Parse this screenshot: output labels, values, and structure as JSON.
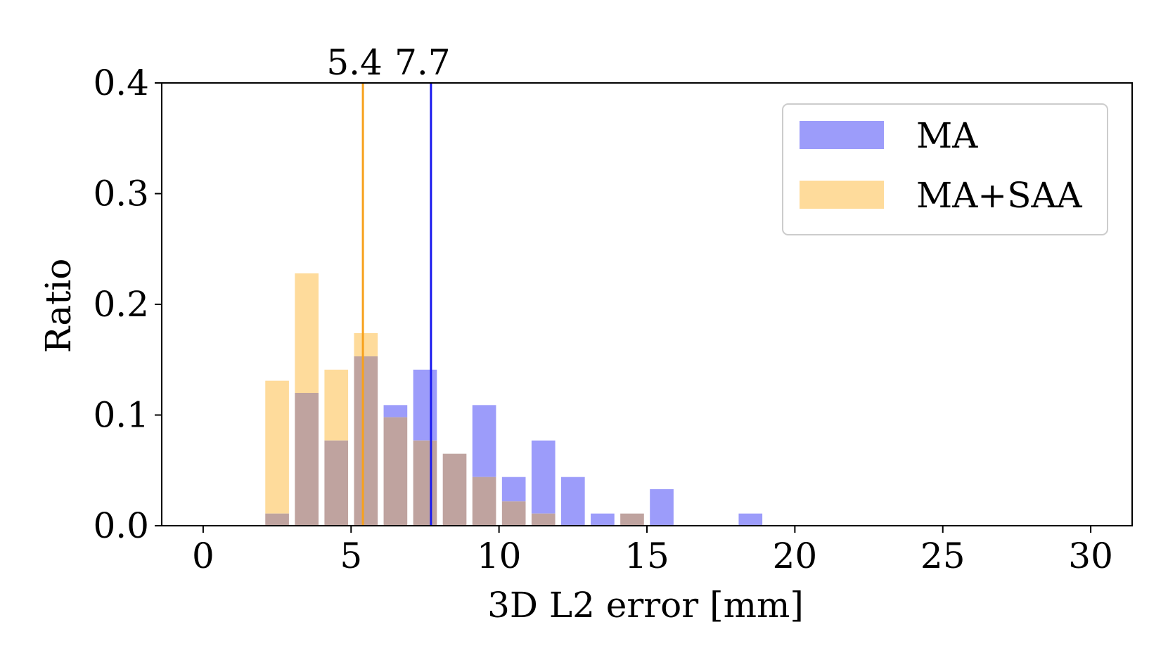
{
  "chart_data": {
    "type": "bar",
    "xlabel": "3D L2 error [mm]",
    "ylabel": "Ratio",
    "xlim": [
      -1.4,
      31.4
    ],
    "ylim": [
      0,
      0.4
    ],
    "xticks": [
      0,
      5,
      10,
      15,
      20,
      25,
      30
    ],
    "yticks": [
      "0.0",
      "0.1",
      "0.2",
      "0.3",
      "0.4"
    ],
    "bin_width": 1,
    "bin_centers": [
      2.5,
      3.5,
      4.5,
      5.5,
      6.5,
      7.5,
      8.5,
      9.5,
      10.5,
      11.5,
      12.5,
      13.5,
      14.5,
      15.5,
      16.5,
      17.5,
      18.5
    ],
    "series": [
      {
        "name": "MA",
        "color": "#9c9cfa",
        "values": [
          0.011,
          0.12,
          0.077,
          0.153,
          0.109,
          0.141,
          0.065,
          0.109,
          0.044,
          0.077,
          0.044,
          0.011,
          0.011,
          0.033,
          0.0,
          0.0,
          0.011
        ]
      },
      {
        "name": "MA+SAA",
        "color": "#fedb9b",
        "values": [
          0.131,
          0.228,
          0.141,
          0.174,
          0.098,
          0.077,
          0.065,
          0.044,
          0.022,
          0.011,
          0.0,
          0.0,
          0.011,
          0.0,
          0.0,
          0.0,
          0.0
        ]
      }
    ],
    "overlap_color": "#bfa39f",
    "mean_lines": [
      {
        "series": "MA+SAA",
        "value": 5.4,
        "label": "5.4",
        "color": "#f7a11c"
      },
      {
        "series": "MA",
        "value": 7.7,
        "label": "7.7",
        "color": "#1a1aee"
      }
    ],
    "legend": {
      "placement": "upper right",
      "entries": [
        {
          "label": "MA",
          "color": "#9c9cfa"
        },
        {
          "label": "MA+SAA",
          "color": "#fedb9b"
        }
      ]
    },
    "grid": false
  }
}
